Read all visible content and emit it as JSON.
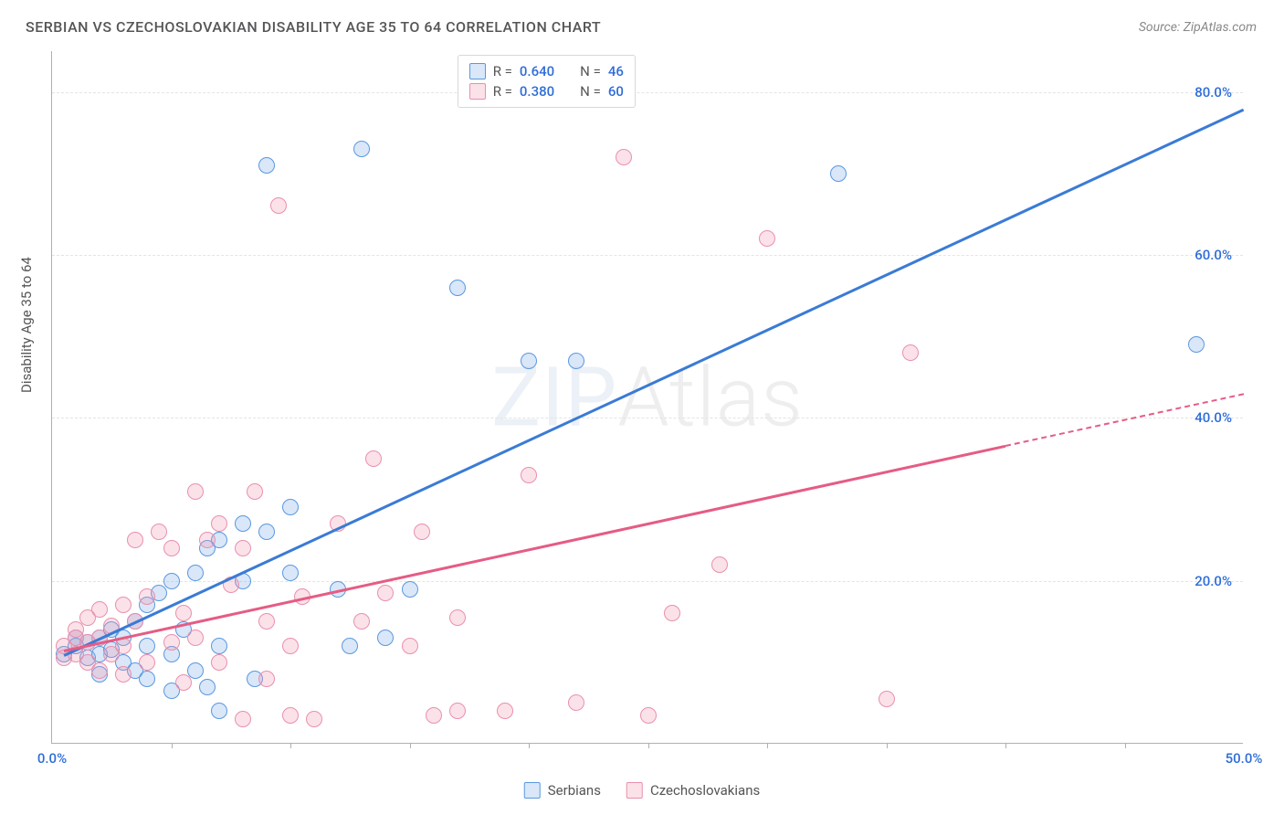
{
  "title": "SERBIAN VS CZECHOSLOVAKIAN DISABILITY AGE 35 TO 64 CORRELATION CHART",
  "source_label": "Source: ZipAtlas.com",
  "y_axis_title": "Disability Age 35 to 64",
  "watermark_a": "ZIP",
  "watermark_b": "Atlas",
  "chart": {
    "type": "scatter",
    "xlim": [
      0,
      50
    ],
    "ylim": [
      0,
      85
    ],
    "x_ticks": [
      0,
      50
    ],
    "x_tick_labels": [
      "0.0%",
      "50.0%"
    ],
    "x_minor_ticks": [
      5,
      10,
      15,
      20,
      25,
      30,
      35,
      40,
      45
    ],
    "y_ticks": [
      20,
      40,
      60,
      80
    ],
    "y_tick_labels": [
      "20.0%",
      "40.0%",
      "60.0%",
      "80.0%"
    ],
    "grid_color": "#e4e4e4",
    "axis_color": "#b0b0b0",
    "background_color": "#ffffff",
    "tick_label_color": "#2e6dd8",
    "label_fontsize": 15,
    "title_fontsize": 16,
    "marker_radius": 9,
    "marker_fill_opacity": 0.28,
    "marker_stroke_width": 1.4,
    "line_width": 2.5
  },
  "series": [
    {
      "name": "Serbians",
      "color": "#3a7bd5",
      "fill": "rgba(120,170,230,0.28)",
      "stroke": "#5a98e0",
      "r_value": "0.640",
      "n_value": "46",
      "trend": {
        "x1": 0.5,
        "y1": 11,
        "x2": 50,
        "y2": 78,
        "dash_from_x": 50
      },
      "points": [
        [
          0.5,
          11
        ],
        [
          1,
          12
        ],
        [
          1,
          13
        ],
        [
          1.5,
          10.5
        ],
        [
          1.5,
          12.5
        ],
        [
          2,
          11
        ],
        [
          2,
          13
        ],
        [
          2,
          8.5
        ],
        [
          2.5,
          14
        ],
        [
          2.5,
          11.5
        ],
        [
          3,
          10
        ],
        [
          3,
          13
        ],
        [
          3.5,
          9
        ],
        [
          3.5,
          15
        ],
        [
          4,
          12
        ],
        [
          4,
          8
        ],
        [
          4,
          17
        ],
        [
          4.5,
          18.5
        ],
        [
          5,
          20
        ],
        [
          5,
          11
        ],
        [
          5,
          6.5
        ],
        [
          5.5,
          14
        ],
        [
          6,
          21
        ],
        [
          6,
          9
        ],
        [
          6.5,
          24
        ],
        [
          6.5,
          7
        ],
        [
          7,
          25
        ],
        [
          7,
          12
        ],
        [
          7,
          4
        ],
        [
          8,
          20
        ],
        [
          8,
          27
        ],
        [
          8.5,
          8
        ],
        [
          9,
          26
        ],
        [
          9,
          71
        ],
        [
          10,
          21
        ],
        [
          10,
          29
        ],
        [
          12,
          19
        ],
        [
          12.5,
          12
        ],
        [
          13,
          73
        ],
        [
          14,
          13
        ],
        [
          15,
          19
        ],
        [
          17,
          56
        ],
        [
          20,
          47
        ],
        [
          22,
          47
        ],
        [
          33,
          70
        ],
        [
          48,
          49
        ]
      ]
    },
    {
      "name": "Czechoslovakians",
      "color": "#e55c84",
      "fill": "rgba(240,150,175,0.28)",
      "stroke": "#ea8fae",
      "r_value": "0.380",
      "n_value": "60",
      "trend": {
        "x1": 0.5,
        "y1": 11.5,
        "x2": 50,
        "y2": 43,
        "dash_from_x": 40
      },
      "points": [
        [
          0.5,
          10.5
        ],
        [
          0.5,
          12
        ],
        [
          1,
          11
        ],
        [
          1,
          13
        ],
        [
          1,
          14
        ],
        [
          1.5,
          10
        ],
        [
          1.5,
          12.5
        ],
        [
          1.5,
          15.5
        ],
        [
          2,
          9
        ],
        [
          2,
          13
        ],
        [
          2,
          16.5
        ],
        [
          2.5,
          11
        ],
        [
          2.5,
          14.5
        ],
        [
          3,
          8.5
        ],
        [
          3,
          12
        ],
        [
          3,
          17
        ],
        [
          3.5,
          15
        ],
        [
          3.5,
          25
        ],
        [
          4,
          10
        ],
        [
          4,
          18
        ],
        [
          4.5,
          26
        ],
        [
          5,
          12.5
        ],
        [
          5,
          24
        ],
        [
          5.5,
          7.5
        ],
        [
          5.5,
          16
        ],
        [
          6,
          31
        ],
        [
          6,
          13
        ],
        [
          6.5,
          25
        ],
        [
          7,
          27
        ],
        [
          7,
          10
        ],
        [
          7.5,
          19.5
        ],
        [
          8,
          3
        ],
        [
          8,
          24
        ],
        [
          8.5,
          31
        ],
        [
          9,
          8
        ],
        [
          9,
          15
        ],
        [
          9.5,
          66
        ],
        [
          10,
          3.5
        ],
        [
          10,
          12
        ],
        [
          10.5,
          18
        ],
        [
          11,
          3
        ],
        [
          12,
          27
        ],
        [
          13,
          15
        ],
        [
          13.5,
          35
        ],
        [
          14,
          18.5
        ],
        [
          15,
          12
        ],
        [
          15.5,
          26
        ],
        [
          16,
          3.5
        ],
        [
          17,
          4
        ],
        [
          17,
          15.5
        ],
        [
          19,
          4
        ],
        [
          20,
          33
        ],
        [
          24,
          72
        ],
        [
          26,
          16
        ],
        [
          28,
          22
        ],
        [
          30,
          62
        ],
        [
          35,
          5.5
        ],
        [
          36,
          48
        ],
        [
          25,
          3.5
        ],
        [
          22,
          5
        ]
      ]
    }
  ],
  "legend": {
    "r_label": "R =",
    "n_label": "N =",
    "value_color": "#2e6dd8"
  },
  "bottom_legend": {
    "series1_label": "Serbians",
    "series2_label": "Czechoslovakians"
  }
}
